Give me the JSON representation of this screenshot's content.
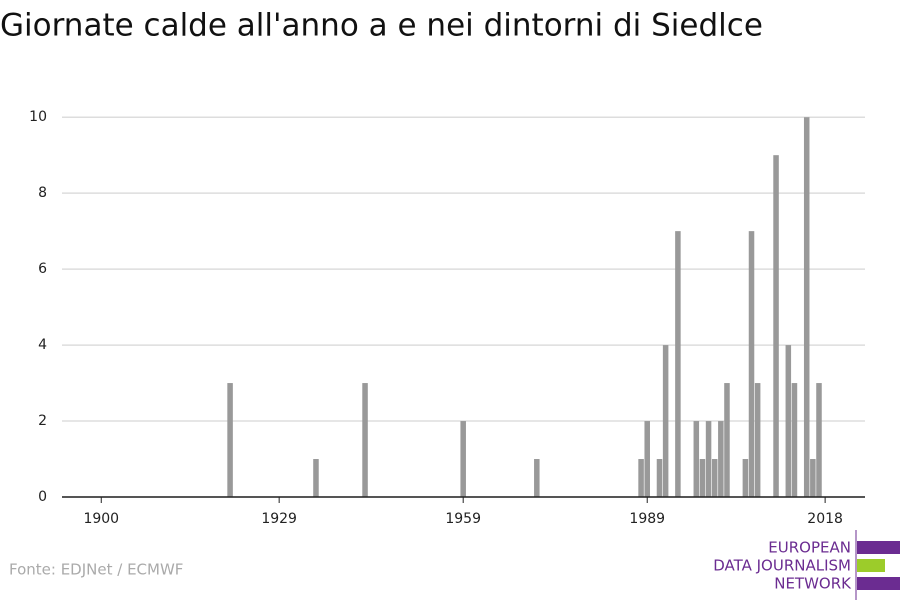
{
  "chart_data": {
    "type": "bar",
    "title": "Giornate calde all'anno a e nei dintorni di Siedlce",
    "source": "Fonte: EDJNet / ECMWF",
    "x": [
      1921,
      1935,
      1943,
      1959,
      1971,
      1988,
      1989,
      1991,
      1992,
      1994,
      1997,
      1998,
      1999,
      2000,
      2001,
      2002,
      2005,
      2006,
      2007,
      2010,
      2012,
      2013,
      2015,
      2016,
      2017
    ],
    "values": [
      3,
      1,
      3,
      2,
      1,
      1,
      2,
      1,
      4,
      7,
      2,
      1,
      2,
      1,
      2,
      3,
      1,
      7,
      3,
      9,
      4,
      3,
      10,
      1,
      3
    ],
    "color": "#999999",
    "xlim": [
      1893.6,
      2024.5
    ],
    "xticks": [
      1900,
      1929,
      1959,
      1989,
      2018
    ],
    "ylim": [
      0,
      10.4
    ],
    "yticks": [
      0,
      2,
      4,
      6,
      8,
      10
    ],
    "grid": true
  },
  "logo": [
    "EUROPEAN",
    "DATA JOURNALISM",
    "NETWORK"
  ]
}
